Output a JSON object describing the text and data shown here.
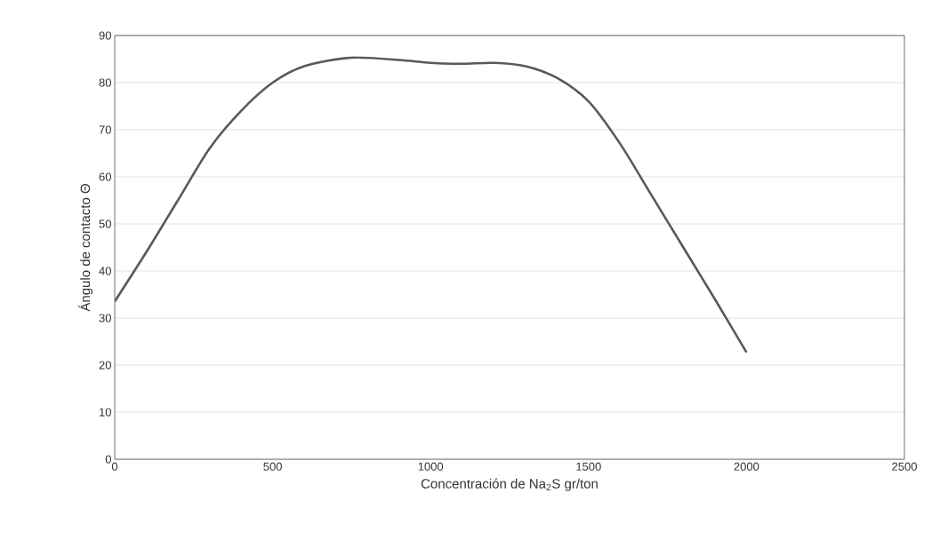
{
  "chart_data": {
    "type": "line",
    "xlabel": "Concentración de Na$_{2}$S gr/ton",
    "ylabel": "Ángulo de contacto Θ",
    "x": [
      0,
      100,
      200,
      300,
      400,
      500,
      600,
      750,
      900,
      1000,
      1100,
      1200,
      1300,
      1400,
      1500,
      1600,
      1700,
      1800,
      1900,
      2000
    ],
    "series": [
      {
        "color": "#595959",
        "values": [
          33.5,
          44,
          55,
          66,
          74,
          80,
          83.5,
          85.3,
          84.8,
          84.2,
          84.0,
          84.2,
          83.5,
          81,
          76,
          67,
          56,
          45,
          34,
          22.7
        ]
      }
    ],
    "xlim": [
      0,
      2500
    ],
    "xticks": [
      0,
      500,
      1000,
      1500,
      2000,
      2500
    ],
    "ylim": [
      0,
      90
    ],
    "yticks": [
      0,
      10,
      20,
      30,
      40,
      50,
      60,
      70,
      80,
      90
    ],
    "grid": "y",
    "marker": "none",
    "line_style": "solid"
  }
}
